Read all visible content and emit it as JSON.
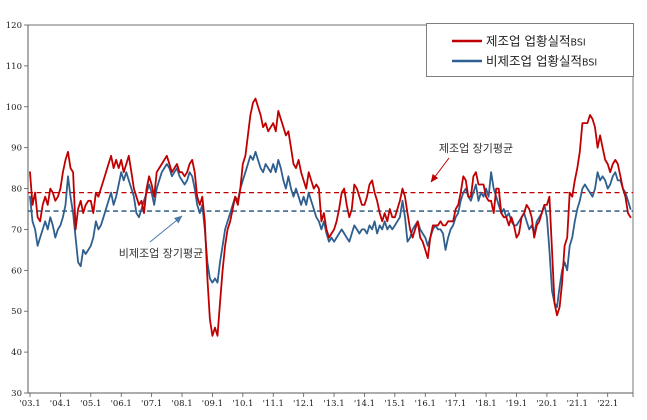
{
  "page": {
    "background": "#ffffff"
  },
  "chart_data": {
    "type": "line",
    "title": "",
    "frequency": "monthly",
    "x_start": "2003.1",
    "x_end": "2022.10",
    "x_tick_labels": [
      "'03.1",
      "'04.1",
      "'05.1",
      "'06.1",
      "'07.1",
      "'08.1",
      "'09.1",
      "'10.1",
      "'11.1",
      "'12.1",
      "'13.1",
      "'14.1",
      "'15.1",
      "'16.1",
      "'17.1",
      "'18.1",
      "'19.1",
      "'20.1",
      "'21.1",
      "'22.1"
    ],
    "ylim": [
      30,
      120
    ],
    "y_ticks": [
      30,
      40,
      50,
      60,
      70,
      80,
      90,
      100,
      110,
      120
    ],
    "grid": false,
    "legend_position": "top-right-inside",
    "series": [
      {
        "name_main": "제조업 업황실적",
        "name_suffix": "BSI",
        "color": "#c00000",
        "values": [
          84,
          76,
          79,
          73,
          72,
          76,
          78,
          76,
          80,
          79,
          77,
          78,
          80,
          84,
          87,
          89,
          85,
          84,
          70,
          75,
          77,
          74,
          76,
          77,
          77,
          74,
          79,
          78,
          80,
          82,
          84,
          86,
          88,
          85,
          87,
          85,
          87,
          84,
          86,
          88,
          84,
          80,
          78,
          76,
          77,
          74,
          80,
          83,
          81,
          78,
          84,
          85,
          86,
          87,
          88,
          86,
          84,
          85,
          86,
          84,
          84,
          83,
          84,
          86,
          87,
          84,
          78,
          76,
          78,
          72,
          58,
          48,
          44,
          46,
          44,
          52,
          60,
          66,
          70,
          72,
          75,
          78,
          76,
          80,
          86,
          88,
          93,
          98,
          101,
          102,
          100,
          98,
          95,
          96,
          94,
          95,
          96,
          94,
          99,
          97,
          95,
          93,
          94,
          90,
          86,
          85,
          87,
          84,
          82,
          80,
          84,
          82,
          80,
          81,
          80,
          72,
          74,
          70,
          68,
          69,
          70,
          72,
          75,
          79,
          80,
          76,
          73,
          75,
          81,
          80,
          78,
          76,
          76,
          78,
          81,
          82,
          79,
          77,
          74,
          72,
          74,
          72,
          75,
          73,
          73,
          75,
          77,
          80,
          78,
          74,
          70,
          68,
          70,
          72,
          68,
          67,
          65,
          63,
          68,
          71,
          71,
          71,
          72,
          71,
          71,
          72,
          72,
          72,
          75,
          76,
          79,
          83,
          82,
          78,
          78,
          83,
          84,
          81,
          81,
          81,
          78,
          77,
          77,
          74,
          80,
          80,
          74,
          73,
          73,
          71,
          73,
          71,
          68,
          69,
          73,
          74,
          76,
          75,
          73,
          68,
          71,
          72,
          74,
          76,
          76,
          78,
          65,
          52,
          49,
          51,
          57,
          66,
          68,
          79,
          78,
          82,
          85,
          89,
          96,
          96,
          96,
          98,
          97,
          95,
          90,
          93,
          90,
          87,
          86,
          84,
          86,
          87,
          86,
          83,
          80,
          78,
          74,
          73
        ]
      },
      {
        "name_main": "비제조업 업황실적",
        "name_suffix": "BSI",
        "color": "#2e5f8f",
        "values": [
          78,
          72,
          70,
          66,
          68,
          70,
          72,
          70,
          73,
          71,
          68,
          70,
          71,
          73,
          76,
          83,
          78,
          74,
          68,
          62,
          61,
          65,
          64,
          65,
          66,
          68,
          72,
          70,
          71,
          73,
          75,
          77,
          79,
          76,
          78,
          81,
          84,
          82,
          84,
          82,
          80,
          78,
          74,
          73,
          75,
          77,
          79,
          81,
          79,
          76,
          80,
          82,
          84,
          85,
          86,
          85,
          83,
          84,
          85,
          83,
          82,
          81,
          82,
          84,
          83,
          80,
          76,
          74,
          76,
          70,
          62,
          58,
          57,
          58,
          57,
          62,
          66,
          70,
          72,
          74,
          76,
          78,
          77,
          80,
          82,
          84,
          86,
          88,
          87,
          89,
          87,
          85,
          84,
          86,
          85,
          84,
          86,
          84,
          87,
          85,
          82,
          80,
          83,
          80,
          78,
          80,
          78,
          76,
          78,
          76,
          79,
          77,
          75,
          73,
          72,
          70,
          72,
          69,
          67,
          68,
          67,
          68,
          69,
          70,
          69,
          68,
          67,
          69,
          71,
          70,
          69,
          70,
          70,
          69,
          71,
          70,
          72,
          69,
          71,
          70,
          72,
          70,
          71,
          70,
          71,
          72,
          73,
          77,
          73,
          67,
          68,
          70,
          71,
          72,
          70,
          69,
          68,
          66,
          68,
          70,
          71,
          70,
          70,
          69,
          65,
          68,
          70,
          71,
          73,
          74,
          77,
          79,
          80,
          78,
          77,
          79,
          81,
          77,
          79,
          78,
          80,
          78,
          84,
          80,
          78,
          76,
          74,
          75,
          73,
          74,
          72,
          71,
          71,
          72,
          73,
          74,
          72,
          70,
          71,
          69,
          72,
          73,
          74,
          76,
          73,
          65,
          55,
          52,
          51,
          56,
          60,
          62,
          60,
          66,
          68,
          72,
          75,
          77,
          80,
          81,
          80,
          79,
          78,
          80,
          84,
          82,
          83,
          82,
          80,
          81,
          83,
          84,
          82,
          82,
          80,
          79,
          77,
          75
        ]
      }
    ],
    "reference_lines": [
      {
        "label": "제조업 장기평균",
        "value": 79,
        "color": "#c00000"
      },
      {
        "label": "비제조업 장기평균",
        "value": 74.5,
        "color": "#1f4e79"
      }
    ],
    "annotation_arrow_colors": {
      "manufacturing": "#c00000",
      "nonmanufacturing": "#4a7aad"
    },
    "frame_colors": {
      "axis": "#595959",
      "border": "#a0a0a0"
    }
  }
}
